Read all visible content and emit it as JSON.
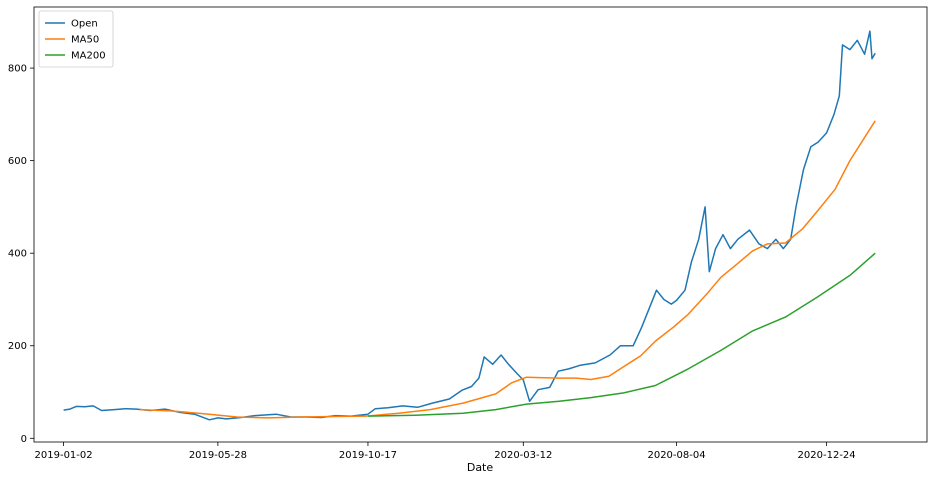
{
  "chart_data": {
    "type": "line",
    "title": "",
    "xlabel": "Date",
    "ylabel": "",
    "x_tick_labels": [
      "2019-01-02",
      "2019-05-28",
      "2019-10-17",
      "2020-03-12",
      "2020-08-04",
      "2020-12-24"
    ],
    "y_ticks": [
      0,
      200,
      400,
      600,
      800
    ],
    "ylim": [
      -8,
      932
    ],
    "xlim": [
      "2018-12-05",
      "2021-03-29"
    ],
    "grid": false,
    "legend": {
      "placement": "top-left",
      "entries": [
        "Open",
        "MA50",
        "MA200"
      ]
    },
    "series": [
      {
        "name": "Open",
        "color": "#1f77b4",
        "points": [
          [
            "2019-01-02",
            61
          ],
          [
            "2019-01-08",
            63
          ],
          [
            "2019-01-14",
            69
          ],
          [
            "2019-01-22",
            68
          ],
          [
            "2019-01-30",
            70
          ],
          [
            "2019-02-07",
            60
          ],
          [
            "2019-02-19",
            62
          ],
          [
            "2019-03-01",
            64
          ],
          [
            "2019-03-12",
            63
          ],
          [
            "2019-03-25",
            60
          ],
          [
            "2019-04-08",
            63
          ],
          [
            "2019-04-22",
            56
          ],
          [
            "2019-05-06",
            52
          ],
          [
            "2019-05-20",
            40
          ],
          [
            "2019-05-28",
            44
          ],
          [
            "2019-06-05",
            42
          ],
          [
            "2019-06-19",
            45
          ],
          [
            "2019-07-02",
            49
          ],
          [
            "2019-07-22",
            52
          ],
          [
            "2019-08-05",
            46
          ],
          [
            "2019-08-19",
            46
          ],
          [
            "2019-09-03",
            45
          ],
          [
            "2019-09-16",
            49
          ],
          [
            "2019-10-01",
            48
          ],
          [
            "2019-10-17",
            52
          ],
          [
            "2019-10-24",
            64
          ],
          [
            "2019-11-05",
            66
          ],
          [
            "2019-11-19",
            70
          ],
          [
            "2019-12-03",
            67
          ],
          [
            "2019-12-17",
            76
          ],
          [
            "2020-01-02",
            85
          ],
          [
            "2020-01-14",
            104
          ],
          [
            "2020-01-23",
            112
          ],
          [
            "2020-01-30",
            130
          ],
          [
            "2020-02-04",
            176
          ],
          [
            "2020-02-12",
            160
          ],
          [
            "2020-02-20",
            180
          ],
          [
            "2020-02-27",
            160
          ],
          [
            "2020-03-06",
            140
          ],
          [
            "2020-03-12",
            126
          ],
          [
            "2020-03-18",
            80
          ],
          [
            "2020-03-26",
            105
          ],
          [
            "2020-04-06",
            110
          ],
          [
            "2020-04-14",
            145
          ],
          [
            "2020-04-24",
            150
          ],
          [
            "2020-05-05",
            158
          ],
          [
            "2020-05-19",
            163
          ],
          [
            "2020-06-02",
            180
          ],
          [
            "2020-06-12",
            200
          ],
          [
            "2020-06-24",
            200
          ],
          [
            "2020-07-02",
            240
          ],
          [
            "2020-07-09",
            280
          ],
          [
            "2020-07-16",
            320
          ],
          [
            "2020-07-23",
            300
          ],
          [
            "2020-07-30",
            290
          ],
          [
            "2020-08-04",
            298
          ],
          [
            "2020-08-12",
            320
          ],
          [
            "2020-08-18",
            380
          ],
          [
            "2020-08-25",
            430
          ],
          [
            "2020-08-31",
            500
          ],
          [
            "2020-09-04",
            360
          ],
          [
            "2020-09-10",
            410
          ],
          [
            "2020-09-17",
            440
          ],
          [
            "2020-09-24",
            410
          ],
          [
            "2020-10-01",
            430
          ],
          [
            "2020-10-12",
            450
          ],
          [
            "2020-10-21",
            420
          ],
          [
            "2020-10-29",
            410
          ],
          [
            "2020-11-06",
            430
          ],
          [
            "2020-11-13",
            410
          ],
          [
            "2020-11-20",
            430
          ],
          [
            "2020-11-25",
            500
          ],
          [
            "2020-12-02",
            580
          ],
          [
            "2020-12-09",
            630
          ],
          [
            "2020-12-16",
            640
          ],
          [
            "2020-12-24",
            660
          ],
          [
            "2020-12-31",
            700
          ],
          [
            "2021-01-05",
            740
          ],
          [
            "2021-01-08",
            850
          ],
          [
            "2021-01-15",
            840
          ],
          [
            "2021-01-22",
            860
          ],
          [
            "2021-01-29",
            830
          ],
          [
            "2021-02-03",
            880
          ],
          [
            "2021-02-05",
            820
          ],
          [
            "2021-02-08",
            832
          ]
        ]
      },
      {
        "name": "MA50",
        "color": "#ff7f0e",
        "points": [
          [
            "2019-03-15",
            62
          ],
          [
            "2019-04-15",
            59
          ],
          [
            "2019-05-15",
            53
          ],
          [
            "2019-06-15",
            46
          ],
          [
            "2019-07-15",
            44
          ],
          [
            "2019-08-15",
            46
          ],
          [
            "2019-09-15",
            47
          ],
          [
            "2019-10-15",
            48
          ],
          [
            "2019-11-15",
            54
          ],
          [
            "2019-12-15",
            62
          ],
          [
            "2020-01-15",
            76
          ],
          [
            "2020-02-15",
            96
          ],
          [
            "2020-03-01",
            120
          ],
          [
            "2020-03-15",
            132
          ],
          [
            "2020-04-01",
            131
          ],
          [
            "2020-04-15",
            130
          ],
          [
            "2020-05-01",
            130
          ],
          [
            "2020-05-15",
            127
          ],
          [
            "2020-06-01",
            134
          ],
          [
            "2020-06-15",
            155
          ],
          [
            "2020-07-01",
            178
          ],
          [
            "2020-07-15",
            210
          ],
          [
            "2020-08-01",
            240
          ],
          [
            "2020-08-15",
            268
          ],
          [
            "2020-09-01",
            310
          ],
          [
            "2020-09-15",
            348
          ],
          [
            "2020-10-01",
            378
          ],
          [
            "2020-10-15",
            405
          ],
          [
            "2020-10-29",
            420
          ],
          [
            "2020-11-15",
            422
          ],
          [
            "2020-12-01",
            452
          ],
          [
            "2020-12-15",
            490
          ],
          [
            "2021-01-01",
            538
          ],
          [
            "2021-01-15",
            600
          ],
          [
            "2021-02-08",
            686
          ]
        ]
      },
      {
        "name": "MA200",
        "color": "#2ca02c",
        "points": [
          [
            "2019-10-17",
            48
          ],
          [
            "2019-12-01",
            50
          ],
          [
            "2020-01-15",
            54
          ],
          [
            "2020-02-15",
            62
          ],
          [
            "2020-03-15",
            74
          ],
          [
            "2020-04-15",
            80
          ],
          [
            "2020-05-15",
            88
          ],
          [
            "2020-06-15",
            98
          ],
          [
            "2020-07-15",
            114
          ],
          [
            "2020-08-15",
            150
          ],
          [
            "2020-09-15",
            190
          ],
          [
            "2020-10-15",
            232
          ],
          [
            "2020-11-15",
            262
          ],
          [
            "2020-12-15",
            305
          ],
          [
            "2021-01-15",
            352
          ],
          [
            "2021-02-08",
            400
          ]
        ]
      }
    ]
  }
}
